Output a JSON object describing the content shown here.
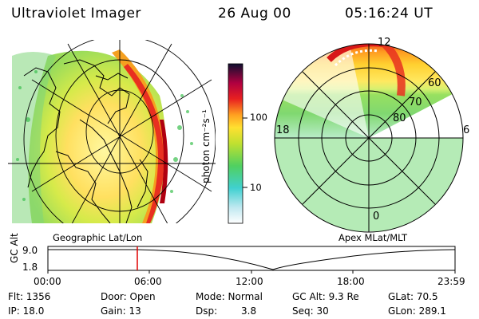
{
  "header": {
    "title": "Ultraviolet Imager",
    "date": "26 Aug 00",
    "time": "05:16:24 UT"
  },
  "colorbar": {
    "unit_label": "photon cm⁻²s⁻¹",
    "ticks": [
      "100",
      "10"
    ]
  },
  "left_panel": {
    "caption": "Geographic Lat/Lon"
  },
  "right_panel": {
    "caption": "Apex MLat/MLT",
    "mlt_labels": [
      "12",
      "18",
      "6",
      "0"
    ],
    "mlat_labels": [
      "60",
      "70",
      "80"
    ]
  },
  "altitude_plot": {
    "ylabel": "GC Alt",
    "yticks": [
      "9.0",
      "1.8"
    ],
    "xticks": [
      "00:00",
      "06:00",
      "12:00",
      "18:00",
      "23:59"
    ],
    "current_time_hours": 5.27
  },
  "info": {
    "flt": "Flt: 1356",
    "ip": "IP: 18.0",
    "door": "Door: Open",
    "gain": "Gain: 13",
    "mode": "Mode: Normal",
    "dsp": "Dsp:",
    "dsp_val": "3.8",
    "gc_alt": "GC Alt: 9.3 Re",
    "seq": "Seq: 30",
    "glat": "GLat: 70.5",
    "glon": "GLon: 289.1"
  },
  "colors": {
    "marker": "#e00000",
    "grid": "#000000"
  }
}
